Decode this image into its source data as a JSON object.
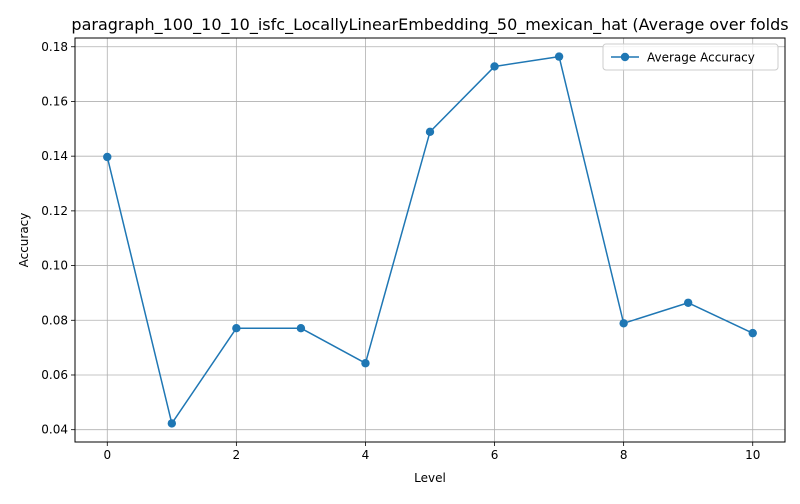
{
  "chart_data": {
    "type": "line",
    "title": "paragraph_100_10_10_isfc_LocallyLinearEmbedding_50_mexican_hat (Average over folds",
    "xlabel": "Level",
    "ylabel": "Accuracy",
    "x": [
      0,
      1,
      2,
      3,
      4,
      5,
      6,
      7,
      8,
      9,
      10
    ],
    "series": [
      {
        "name": "Average Accuracy",
        "color": "#1f77b4",
        "marker": "circle",
        "values": [
          0.1397,
          0.0423,
          0.0771,
          0.0771,
          0.0643,
          0.1489,
          0.1728,
          0.1764,
          0.0789,
          0.0864,
          0.0753
        ]
      }
    ],
    "xlim": [
      -0.5,
      10.5
    ],
    "ylim": [
      0.0355,
      0.1832
    ],
    "xticks": [
      0,
      2,
      4,
      6,
      8,
      10
    ],
    "xtick_labels": [
      "0",
      "2",
      "4",
      "6",
      "8",
      "10"
    ],
    "yticks": [
      0.04,
      0.06,
      0.08,
      0.1,
      0.12,
      0.14,
      0.16,
      0.18
    ],
    "ytick_labels": [
      "0.04",
      "0.06",
      "0.08",
      "0.10",
      "0.12",
      "0.14",
      "0.16",
      "0.18"
    ],
    "grid": true,
    "legend_position": "top-right"
  }
}
